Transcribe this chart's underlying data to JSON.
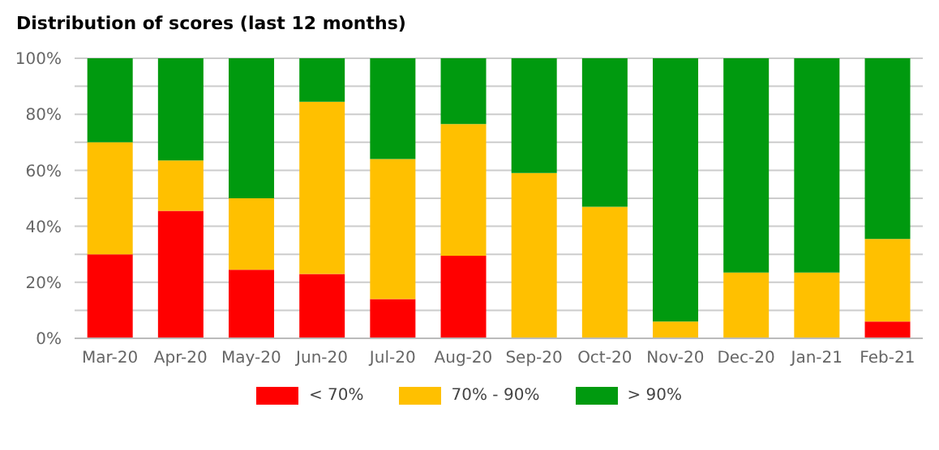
{
  "chart_data": {
    "type": "bar",
    "title": "Distribution of scores (last 12 months)",
    "stacked": true,
    "categories": [
      "Mar-20",
      "Apr-20",
      "May-20",
      "Jun-20",
      "Jul-20",
      "Aug-20",
      "Sep-20",
      "Oct-20",
      "Nov-20",
      "Dec-20",
      "Jan-21",
      "Feb-21"
    ],
    "series": [
      {
        "name": "< 70%",
        "color": "#ff0000",
        "values": [
          30,
          45.5,
          24.5,
          23,
          14,
          29.5,
          0,
          0,
          0,
          0,
          0,
          6
        ]
      },
      {
        "name": "70% - 90%",
        "color": "#ffc000",
        "values": [
          40,
          18,
          25.5,
          61.5,
          50,
          47,
          59,
          47,
          6,
          23.5,
          23.5,
          29.5
        ]
      },
      {
        "name": "> 90%",
        "color": "#009a0f",
        "values": [
          30,
          36.5,
          50,
          15.5,
          36,
          23.5,
          41,
          53,
          94,
          76.5,
          76.5,
          64.5
        ]
      }
    ],
    "ylim": [
      0,
      100
    ],
    "yticks": [
      {
        "value": 0,
        "label": "0%"
      },
      {
        "value": 10,
        "label": null
      },
      {
        "value": 20,
        "label": "20%"
      },
      {
        "value": 30,
        "label": null
      },
      {
        "value": 40,
        "label": "40%"
      },
      {
        "value": 50,
        "label": null
      },
      {
        "value": 60,
        "label": "60%"
      },
      {
        "value": 70,
        "label": null
      },
      {
        "value": 80,
        "label": "80%"
      },
      {
        "value": 90,
        "label": null
      },
      {
        "value": 100,
        "label": "100%"
      }
    ],
    "grid": "y",
    "legend": "bottom"
  }
}
